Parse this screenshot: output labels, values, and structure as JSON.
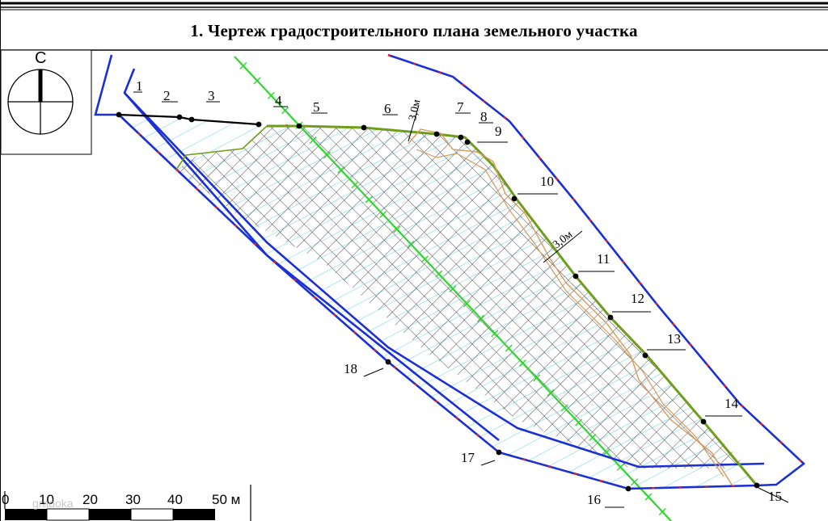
{
  "title": "1. Чертеж градостроительного плана земельного участка",
  "north_letter": "С",
  "dimension_labels": [
    "3,0м",
    "3,0м"
  ],
  "point_labels": [
    "1",
    "2",
    "3",
    "4",
    "5",
    "6",
    "7",
    "8",
    "9",
    "10",
    "11",
    "12",
    "13",
    "14",
    "15",
    "16",
    "17",
    "18"
  ],
  "scale": {
    "ticks": [
      "0",
      "10",
      "20",
      "30",
      "40",
      "50 м"
    ]
  },
  "watermark": "gradoka",
  "colors": {
    "boundary": "#1a2fd6",
    "red_dash": "#e2232a",
    "green_line": "#6e9e1c",
    "utility": "#2fd62f",
    "orange": "#d89a5a",
    "hatch": "#3a3a3a",
    "cyan_hatch": "#5fd3f0"
  }
}
